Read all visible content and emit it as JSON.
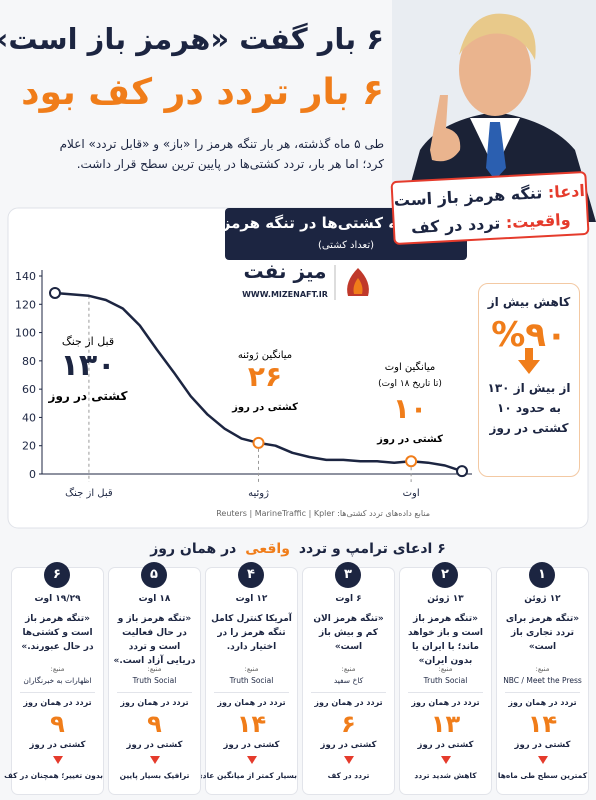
{
  "header": {
    "title_line1": "۶ بار گفت «هرمز باز است»؛",
    "title_line2": "۶ بار تردد در کف بود",
    "intro": "طی ۵ ماه گذشته، هر بار تنگه هرمز را «باز» و «قابل تردد» اعلام کرد؛ اما هر بار، تردد کشتی‌ها در پایین ترین سطح قرار داشت.",
    "claim_label": "ادعا:",
    "claim_text": "تنگه هرمز باز است",
    "reality_label": "واقعیت:",
    "reality_text": "تردد در کف"
  },
  "chart_data": {
    "type": "line",
    "title": "تردد روزانه کشتی‌ها در تنگه هرمز",
    "subtitle": "(تعداد کشتی)",
    "categories": [
      null,
      null,
      "قبل از جنگ",
      null,
      null,
      null,
      null,
      null,
      null,
      null,
      null,
      null,
      "ژوئیه",
      null,
      null,
      null,
      null,
      null,
      null,
      null,
      null,
      "اوت",
      null,
      null,
      null
    ],
    "values": [
      128,
      127,
      126,
      123,
      117,
      105,
      88,
      72,
      55,
      42,
      32,
      25,
      22,
      20,
      15,
      12,
      10,
      10,
      9,
      9,
      8,
      9,
      8,
      6,
      2
    ],
    "color": "#1c2541",
    "ylim": [
      0,
      140
    ],
    "yticks": [
      0,
      20,
      40,
      60,
      80,
      100,
      120,
      140
    ],
    "grid": false,
    "annotations": {
      "prewar_label": "قبل از جنگ",
      "prewar_value": "۱۳۰",
      "prewar_unit": "کشتی در روز",
      "june_label": "میانگین ژوئنه",
      "june_value": "۲۶",
      "june_unit": "کشتی در روز",
      "aug_label": "میانگین اوت",
      "aug_note": "(تا تاریخ ۱۸ اوت)",
      "aug_value": "۱۰",
      "aug_unit": "کشتی در روز"
    }
  },
  "logo": {
    "name": "میز نفت",
    "url": "WWW.MIZENAFT.IR"
  },
  "side_box": {
    "line1": "کاهش بیش از",
    "big": "%۹۰",
    "line2": "از بیش از ۱۳۰",
    "line3": "به حدود ۱۰",
    "line4": "کشتی در روز"
  },
  "sources": {
    "label": "منابع داده‌های تردد کشتی‌ها:",
    "list": "Reuters  |  MarineTraffic  |  Kpler"
  },
  "claims": {
    "title_parts": [
      "۶ ادعای ترامپ و تردد",
      "واقعی",
      "در همان روز"
    ],
    "items": [
      {
        "number": "۱",
        "date": "۱۲ ژوئن",
        "quote": "«تنگه هرمز برای تردد تجاری باز است»",
        "source_label": "منبع:",
        "source": "NBC / Meet the Press",
        "traffic_label": "تردد در همان روز",
        "value": "۱۴",
        "unit": "کشتی در روز",
        "note": "کمترین سطح طی ماه‌ها"
      },
      {
        "number": "۲",
        "date": "۱۳ ژوئن",
        "quote": "«تنگه هرمز باز است و باز خواهد ماند؛ با ایران یا بدون ایران»",
        "source_label": "منبع:",
        "source": "Truth Social",
        "traffic_label": "تردد در همان روز",
        "value": "۱۳",
        "unit": "کشتی در روز",
        "note": "کاهش شدید تردد"
      },
      {
        "number": "۳",
        "date": "۶ اوت",
        "quote": "«تنگه هرمز الان کم و بیش باز است»",
        "source_label": "منبع:",
        "source": "کاخ سفید",
        "traffic_label": "تردد در همان روز",
        "value": "۶",
        "unit": "کشتی در روز",
        "note": "تردد در کف"
      },
      {
        "number": "۴",
        "date": "۱۲ اوت",
        "quote": "آمریکا کنترل کامل تنگه هرمز را در اختیار دارد.",
        "source_label": "منبع:",
        "source": "Truth Social",
        "traffic_label": "تردد در همان روز",
        "value": "۱۴",
        "unit": "کشتی در روز",
        "note": "بسیار کمتر از میانگین عادی"
      },
      {
        "number": "۵",
        "date": "۱۸ اوت",
        "quote": "«تنگه هرمز باز و در حال فعالیت است و تردد دریایی آزاد است.»",
        "source_label": "منبع:",
        "source": "Truth Social",
        "traffic_label": "تردد در همان روز",
        "value": "۹",
        "unit": "کشتی در روز",
        "note": "ترافیک بسیار پایین"
      },
      {
        "number": "۶",
        "date": "۱۹/۲۹ اوت",
        "quote": "«تنگه هرمز باز است و کشتی‌ها در حال عبورند.»",
        "source_label": "منبع:",
        "source": "اظهارات به خبرنگاران",
        "traffic_label": "تردد در همان روز",
        "value": "۹",
        "unit": "کشتی در روز",
        "note": "بدون تغییر؛ همچنان در کف"
      }
    ]
  }
}
